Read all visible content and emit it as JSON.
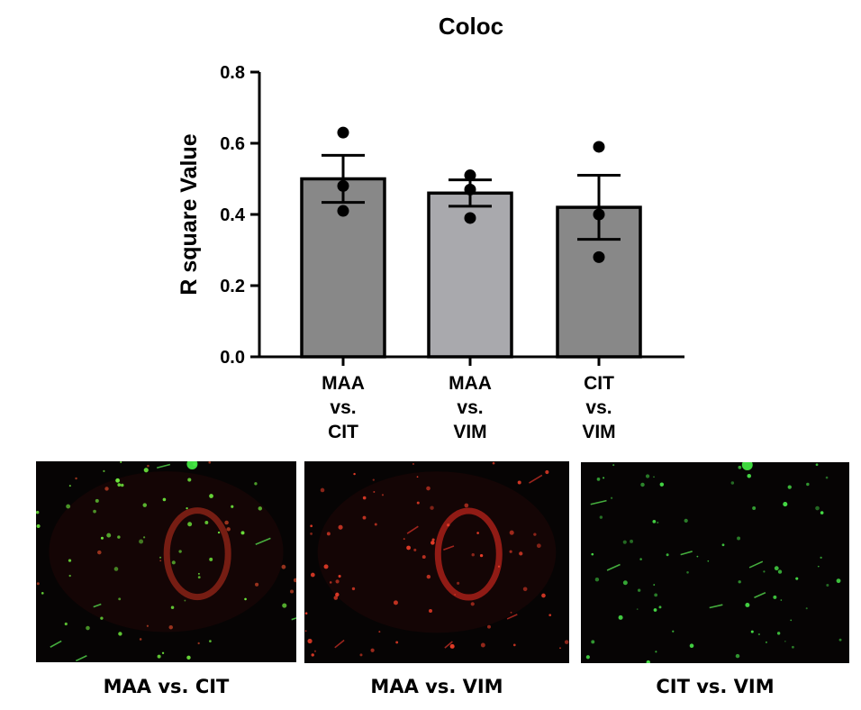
{
  "chart_data": {
    "type": "bar",
    "title": "Coloc",
    "xlabel": "",
    "ylabel": "R square Value",
    "ylim": [
      0,
      0.8
    ],
    "yticks": [
      "0.0",
      "0.2",
      "0.4",
      "0.6",
      "0.8"
    ],
    "yticks_values": [
      0,
      0.2,
      0.4,
      0.6,
      0.8
    ],
    "categories": [
      [
        "MAA",
        "vs.",
        "CIT"
      ],
      [
        "MAA",
        "vs.",
        "VIM"
      ],
      [
        "CIT",
        "vs.",
        "VIM"
      ]
    ],
    "values": [
      0.5,
      0.46,
      0.42
    ],
    "error": [
      0.066,
      0.037,
      0.09
    ],
    "points": [
      [
        0.63,
        0.48,
        0.41
      ],
      [
        0.51,
        0.47,
        0.39
      ],
      [
        0.59,
        0.4,
        0.28
      ]
    ],
    "bar_colors": [
      "#888888",
      "#a9a9ad",
      "#888888"
    ],
    "grid": false
  },
  "panels": {
    "captions": [
      "MAA vs. CIT",
      "MAA vs. VIM",
      "CIT vs. VIM"
    ],
    "channels": [
      "red+green",
      "red",
      "green"
    ]
  }
}
